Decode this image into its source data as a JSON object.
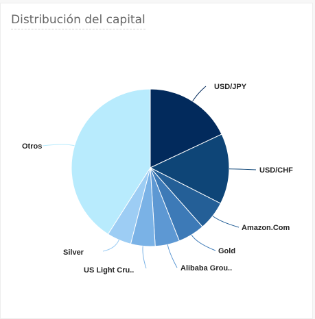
{
  "widget": {
    "title": "Distribución del capital"
  },
  "chart_data": {
    "type": "pie",
    "title": "Distribución del capital",
    "start": "12 o'clock, clockwise",
    "labels": [
      "USD/JPY",
      "USD/CHF",
      "Amazon.Com",
      "Gold",
      "Alibaba Grou..",
      "US Light Cru..",
      "Silver",
      "Otros"
    ],
    "values": [
      18.0,
      14.5,
      6.0,
      5.5,
      5.0,
      5.0,
      5.0,
      41.0
    ],
    "colors": [
      "#022a5c",
      "#0e4577",
      "#245f97",
      "#3d7ab7",
      "#5d98d3",
      "#7ab2e6",
      "#9dcdf4",
      "#b8ebfd"
    ]
  }
}
